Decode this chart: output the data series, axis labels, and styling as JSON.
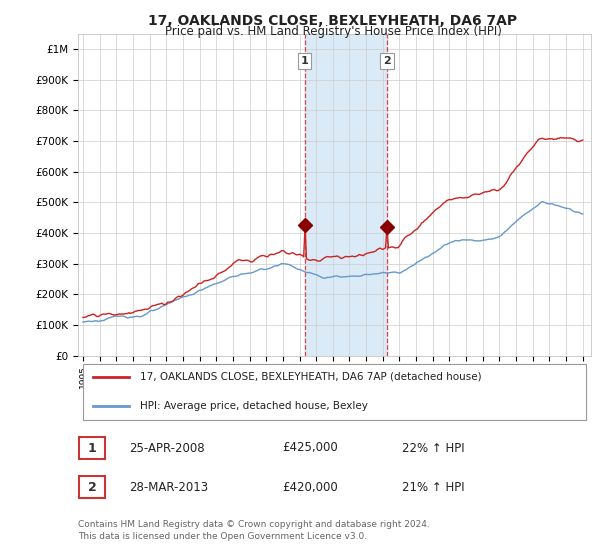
{
  "title": "17, OAKLANDS CLOSE, BEXLEYHEATH, DA6 7AP",
  "subtitle": "Price paid vs. HM Land Registry's House Price Index (HPI)",
  "ylabel_ticks": [
    "£0",
    "£100K",
    "£200K",
    "£300K",
    "£400K",
    "£500K",
    "£600K",
    "£700K",
    "£800K",
    "£900K",
    "£1M"
  ],
  "ytick_values": [
    0,
    100000,
    200000,
    300000,
    400000,
    500000,
    600000,
    700000,
    800000,
    900000,
    1000000
  ],
  "ylim": [
    0,
    1050000
  ],
  "xlim_start": 1994.7,
  "xlim_end": 2025.5,
  "highlight_x1": 2008.3,
  "highlight_x2": 2013.25,
  "highlight_color": "#daeaf7",
  "highlight_vline_color": "#dd4444",
  "marker1_x": 2008.3,
  "marker1_y": 425000,
  "marker2_x": 2013.25,
  "marker2_y": 420000,
  "marker_color": "#880000",
  "line1_color": "#cc2222",
  "line2_color": "#6699cc",
  "legend_label1": "17, OAKLANDS CLOSE, BEXLEYHEATH, DA6 7AP (detached house)",
  "legend_label2": "HPI: Average price, detached house, Bexley",
  "table_rows": [
    {
      "num": "1",
      "date": "25-APR-2008",
      "price": "£425,000",
      "hpi": "22% ↑ HPI"
    },
    {
      "num": "2",
      "date": "28-MAR-2013",
      "price": "£420,000",
      "hpi": "21% ↑ HPI"
    }
  ],
  "footer": "Contains HM Land Registry data © Crown copyright and database right 2024.\nThis data is licensed under the Open Government Licence v3.0.",
  "background_color": "#ffffff",
  "plot_bg_color": "#ffffff",
  "grid_color": "#cccccc"
}
